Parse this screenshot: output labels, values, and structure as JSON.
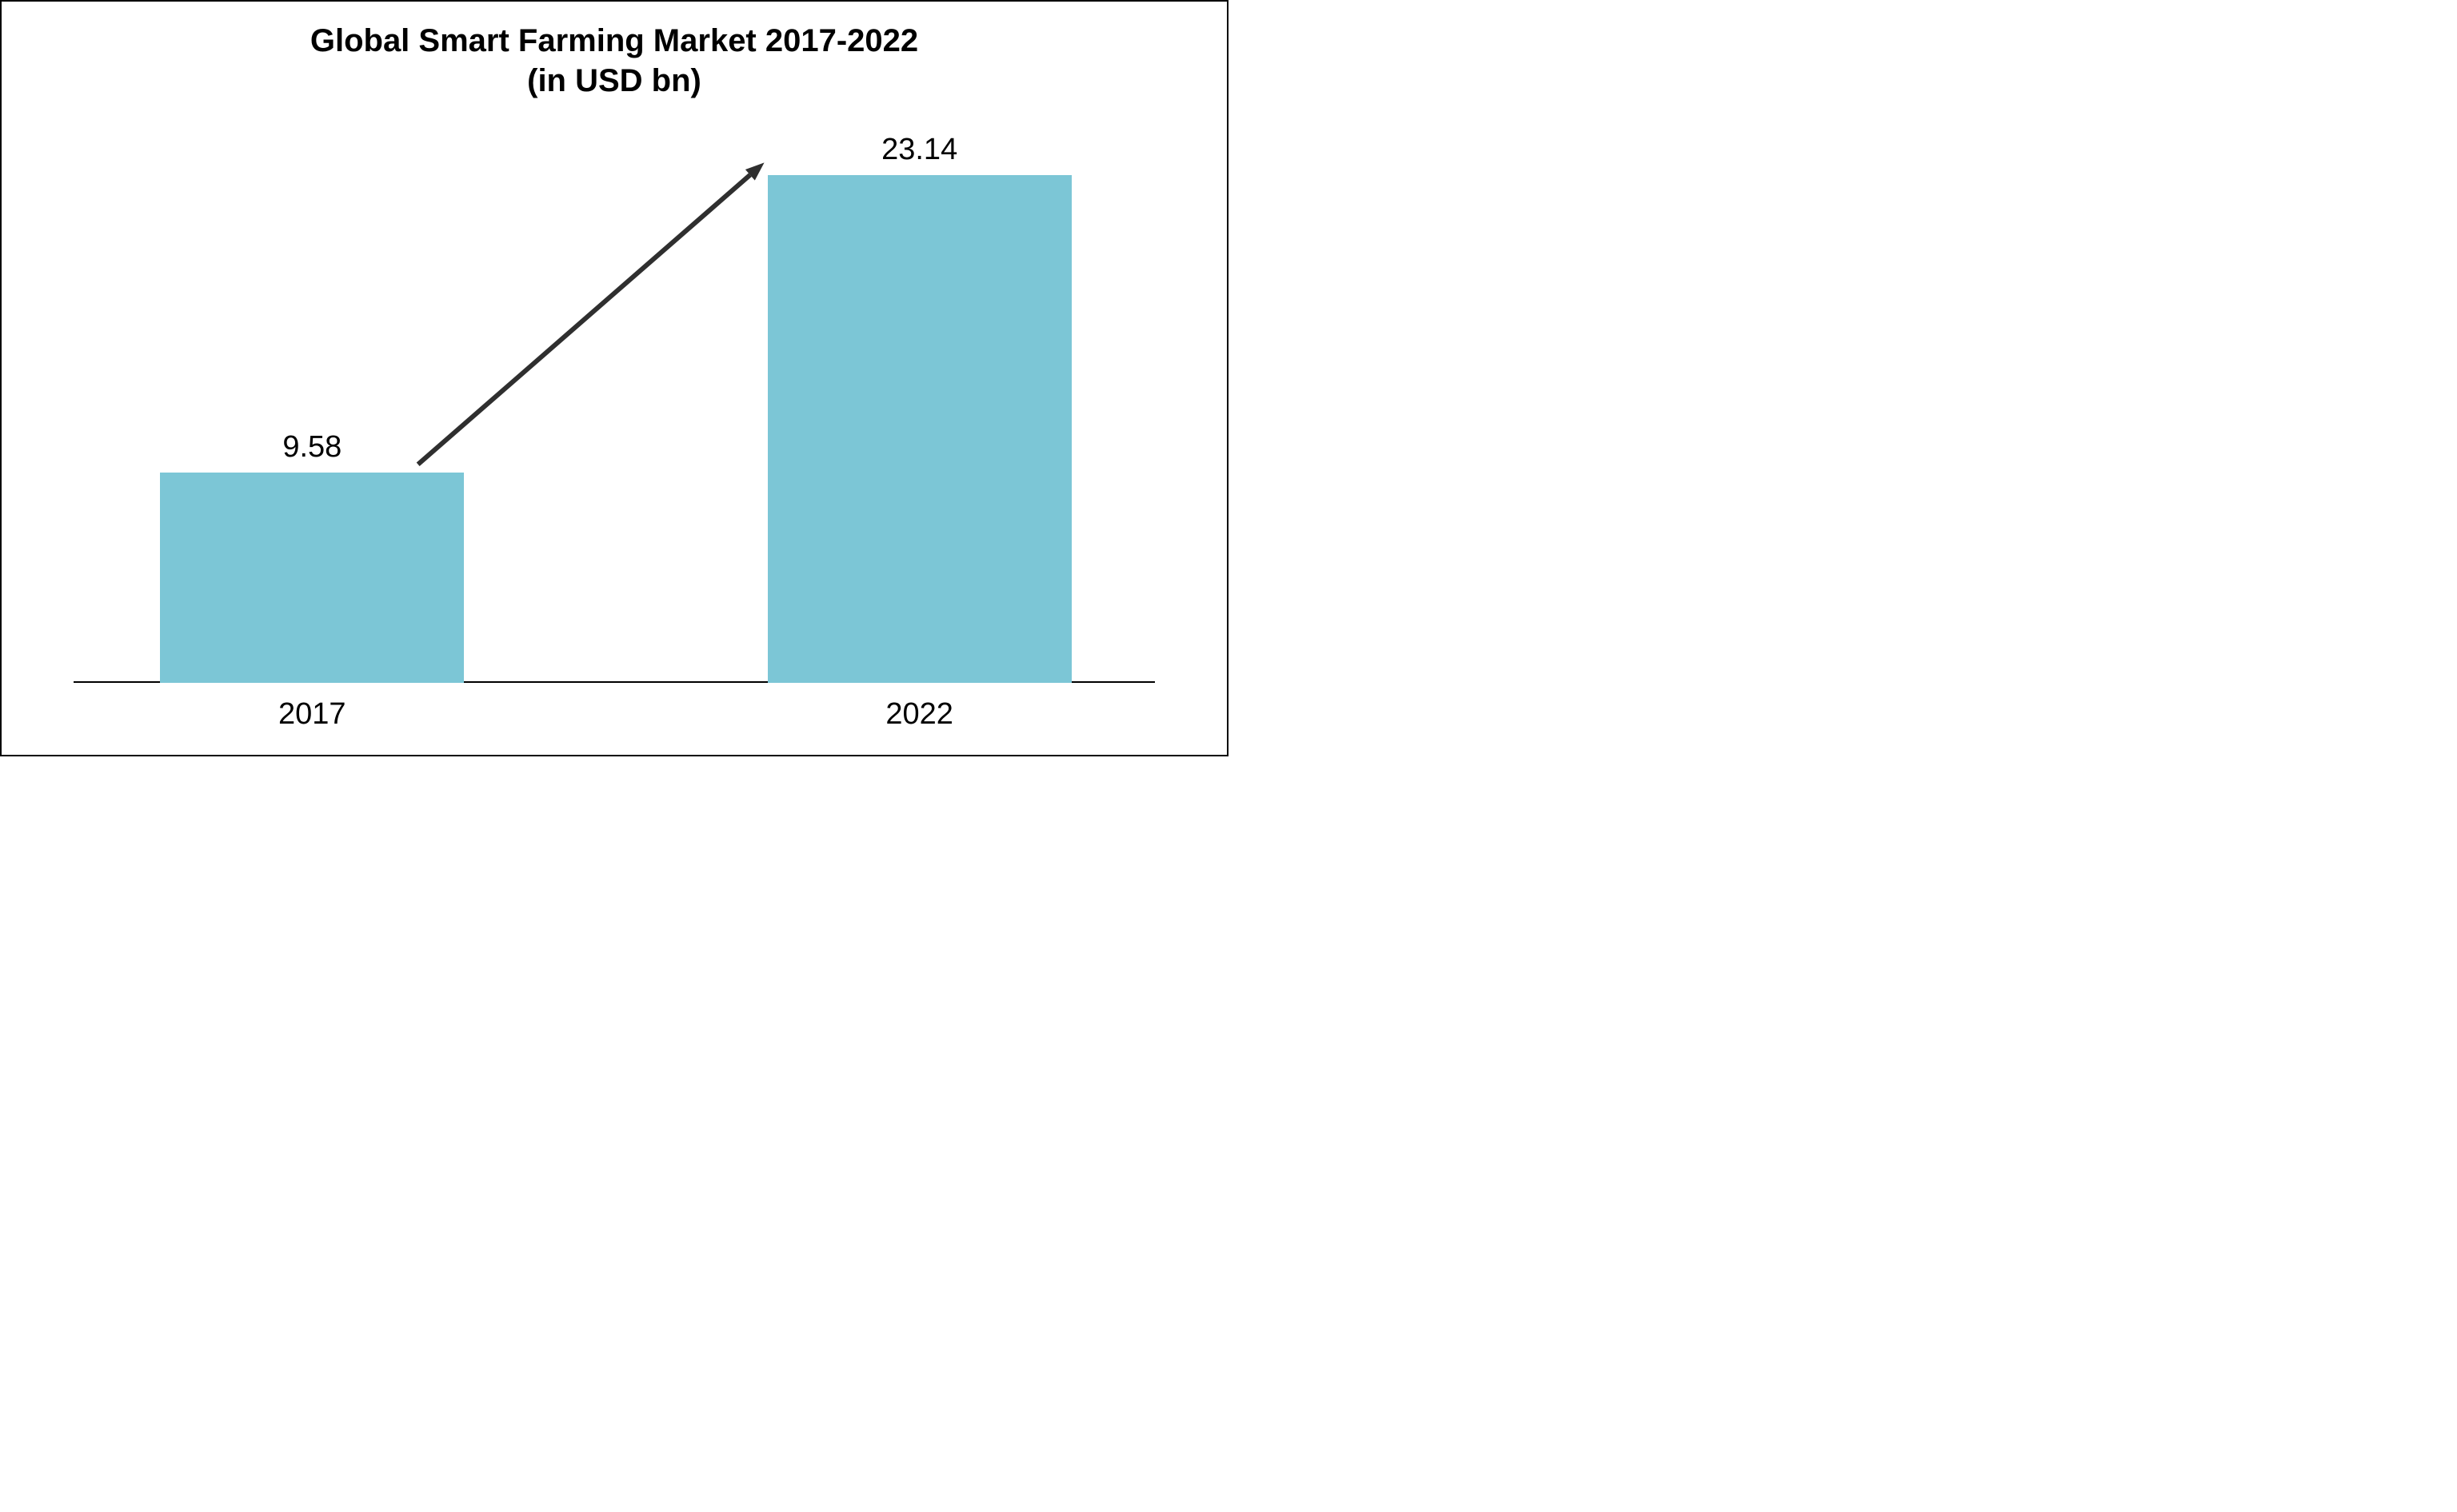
{
  "chart": {
    "type": "bar",
    "title_line1": "Global Smart Farming Market 2017-2022",
    "title_line2": "(in USD bn)",
    "title_fontsize": 40,
    "categories": [
      "2017",
      "2022"
    ],
    "values": [
      9.58,
      23.14
    ],
    "value_labels": [
      "9.58",
      "23.14"
    ],
    "ymax": 25,
    "bar_color": "#7cc6d6",
    "bar_border_width": 0,
    "background_color": "#ffffff",
    "baseline_color": "#000000",
    "baseline_width": 2,
    "text_color": "#000000",
    "value_label_fontsize": 38,
    "xaxis_label_fontsize": 38,
    "bar_width_ratio": 0.28,
    "bar_positions": [
      0.22,
      0.78
    ],
    "arrow": {
      "color": "#2f2f2f",
      "stroke_width": 6,
      "head_length": 26,
      "head_width": 20,
      "start_bar": 0,
      "end_bar": 1
    },
    "frame_border_color": "#000000",
    "frame_border_width": 2,
    "aspect_w": 1536,
    "aspect_h": 946
  }
}
